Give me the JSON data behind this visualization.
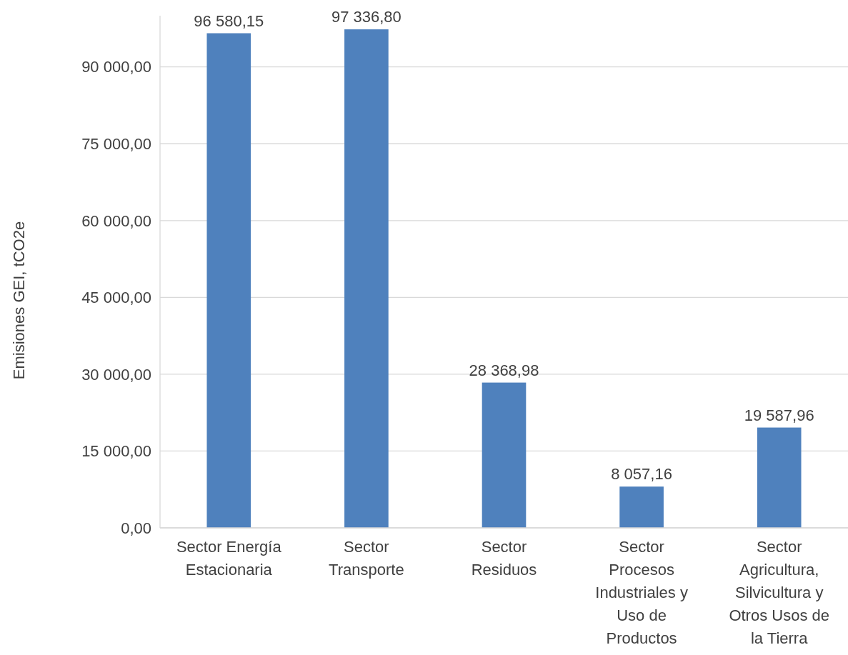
{
  "chart_data": {
    "type": "bar",
    "ylabel": "Emisiones GEI, tCO2e",
    "categories": [
      "Sector Energía Estacionaria",
      "Sector Transporte",
      "Sector Residuos",
      "Sector Procesos Industriales y Uso de Productos",
      "Sector Agricultura, Silvicultura y Otros Usos de la Tierra"
    ],
    "values": [
      96580.15,
      97336.8,
      28368.98,
      8057.16,
      19587.96
    ],
    "value_labels": [
      "96 580,15",
      "97 336,80",
      "28 368,98",
      "8 057,16",
      "19 587,96"
    ],
    "color": "#4f81bd",
    "ylim": [
      0,
      100000
    ],
    "yticks": [
      {
        "value": 0,
        "label": "0,00"
      },
      {
        "value": 15000,
        "label": "15 000,00"
      },
      {
        "value": 30000,
        "label": "30 000,00"
      },
      {
        "value": 45000,
        "label": "45 000,00"
      },
      {
        "value": 60000,
        "label": "60 000,00"
      },
      {
        "value": 75000,
        "label": "75 000,00"
      },
      {
        "value": 90000,
        "label": "90 000,00"
      }
    ],
    "grid": "y"
  }
}
